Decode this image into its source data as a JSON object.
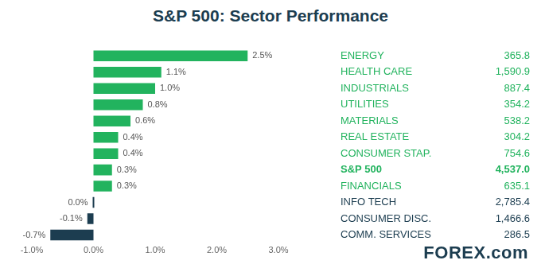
{
  "chart_data": {
    "type": "bar",
    "title": "S&P 500: Sector Performance",
    "orientation": "horizontal",
    "categories": [
      "ENERGY",
      "HEALTH CARE",
      "INDUSTRIALS",
      "UTILITIES",
      "MATERIALS",
      "REAL ESTATE",
      "CONSUMER STAP.",
      "S&P 500",
      "FINANCIALS",
      "INFO TECH",
      "CONSUMER DISC.",
      "COMM. SERVICES"
    ],
    "values": [
      2.5,
      1.1,
      1.0,
      0.8,
      0.6,
      0.4,
      0.4,
      0.3,
      0.3,
      0.0,
      -0.1,
      -0.7
    ],
    "value_labels": [
      "2.5%",
      "1.1%",
      "1.0%",
      "0.8%",
      "0.6%",
      "0.4%",
      "0.4%",
      "0.3%",
      "0.3%",
      "0.0%",
      "-0.1%",
      "-0.7%"
    ],
    "data_labels": true,
    "colors": [
      "#22b35e",
      "#22b35e",
      "#22b35e",
      "#22b35e",
      "#22b35e",
      "#22b35e",
      "#22b35e",
      "#22b35e",
      "#22b35e",
      "#1c3d50",
      "#1c3d50",
      "#1c3d50"
    ],
    "levels": [
      365.8,
      1590.9,
      887.4,
      354.2,
      538.2,
      304.2,
      754.6,
      4537.0,
      635.1,
      2785.4,
      1466.6,
      286.5
    ],
    "level_labels": [
      "365.8",
      "1,590.9",
      "887.4",
      "354.2",
      "538.2",
      "304.2",
      "754.6",
      "4,537.0",
      "635.1",
      "2,785.4",
      "1,466.6",
      "286.5"
    ],
    "xlim": [
      -1,
      3
    ],
    "xticks": [
      {
        "value": -1,
        "label": "-1.0%"
      },
      {
        "value": 0,
        "label": "0.0%"
      },
      {
        "value": 1,
        "label": "1.0%"
      },
      {
        "value": 2,
        "label": "2.0%"
      },
      {
        "value": 3,
        "label": "3.0%"
      }
    ],
    "grid": false,
    "tick_labels": "x"
  },
  "logo": "FOREX.com"
}
